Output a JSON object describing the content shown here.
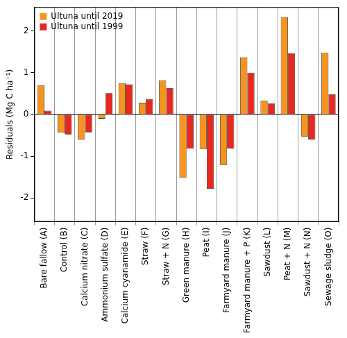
{
  "chart_data": {
    "type": "bar",
    "y_label": "Residuals (Mg C ha⁻¹)",
    "categories": [
      "Bare fallow (A)",
      "Control (B)",
      "Calcium nitrate (C)",
      "Ammonium sulfate (D)",
      "Calcium cyanamide (E)",
      "Straw (F)",
      "Straw + N (G)",
      "Green manure (H)",
      "Peat (I)",
      "Farmyard manure (J)",
      "Farmyard manure + P (K)",
      "Sawdust (L)",
      "Peat + N (M)",
      "Sawdust + N (N)",
      "Sewage sludge (O)"
    ],
    "series": [
      {
        "name": "Ultuna until 2019",
        "color": "#f7941d",
        "values": [
          0.69,
          -0.44,
          -0.6,
          -0.1,
          0.75,
          0.28,
          0.82,
          -1.52,
          -0.83,
          -1.21,
          1.37,
          0.33,
          2.33,
          -0.53,
          1.48
        ]
      },
      {
        "name": "Ultuna until 1999",
        "color": "#e8281e",
        "values": [
          0.09,
          -0.48,
          -0.43,
          0.51,
          0.72,
          0.37,
          0.63,
          -0.82,
          -1.78,
          -0.82,
          1.0,
          0.27,
          1.46,
          -0.6,
          0.48
        ]
      }
    ],
    "ylim": [
      -2.57,
      2.57
    ],
    "yticks": [
      -2,
      -1,
      0,
      1,
      2
    ],
    "grid": true,
    "legend": "top left"
  }
}
